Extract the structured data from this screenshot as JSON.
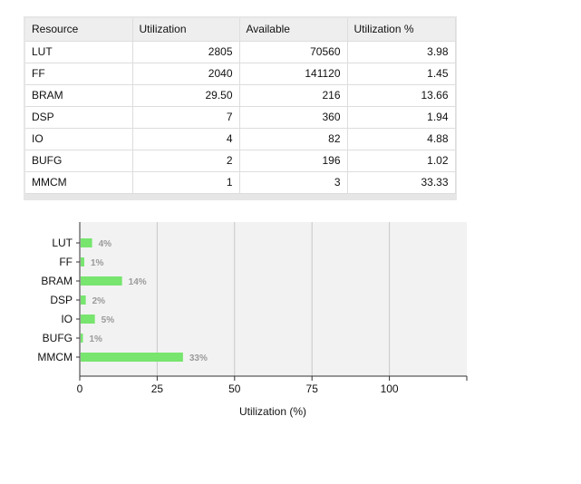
{
  "table": {
    "headers": [
      "Resource",
      "Utilization",
      "Available",
      "Utilization %"
    ],
    "rows": [
      [
        "LUT",
        "2805",
        "70560",
        "3.98"
      ],
      [
        "FF",
        "2040",
        "141120",
        "1.45"
      ],
      [
        "BRAM",
        "29.50",
        "216",
        "13.66"
      ],
      [
        "DSP",
        "7",
        "360",
        "1.94"
      ],
      [
        "IO",
        "4",
        "82",
        "4.88"
      ],
      [
        "BUFG",
        "2",
        "196",
        "1.02"
      ],
      [
        "MMCM",
        "1",
        "3",
        "33.33"
      ]
    ]
  },
  "chart_data": {
    "type": "bar",
    "orientation": "horizontal",
    "categories": [
      "LUT",
      "FF",
      "BRAM",
      "DSP",
      "IO",
      "BUFG",
      "MMCM"
    ],
    "values": [
      3.98,
      1.45,
      13.66,
      1.94,
      4.88,
      1.02,
      33.33
    ],
    "data_labels": [
      "4%",
      "1%",
      "14%",
      "2%",
      "5%",
      "1%",
      "33%"
    ],
    "xlabel": "Utilization (%)",
    "ylabel": "",
    "xlim": [
      0,
      125
    ],
    "xticks": [
      0,
      25,
      50,
      75,
      100
    ],
    "grid": true,
    "colors": {
      "bar": "#77e56e",
      "plot_background": "#f2f2f2",
      "grid": "#c8c8c8",
      "data_label": "#9a9a9a"
    }
  }
}
